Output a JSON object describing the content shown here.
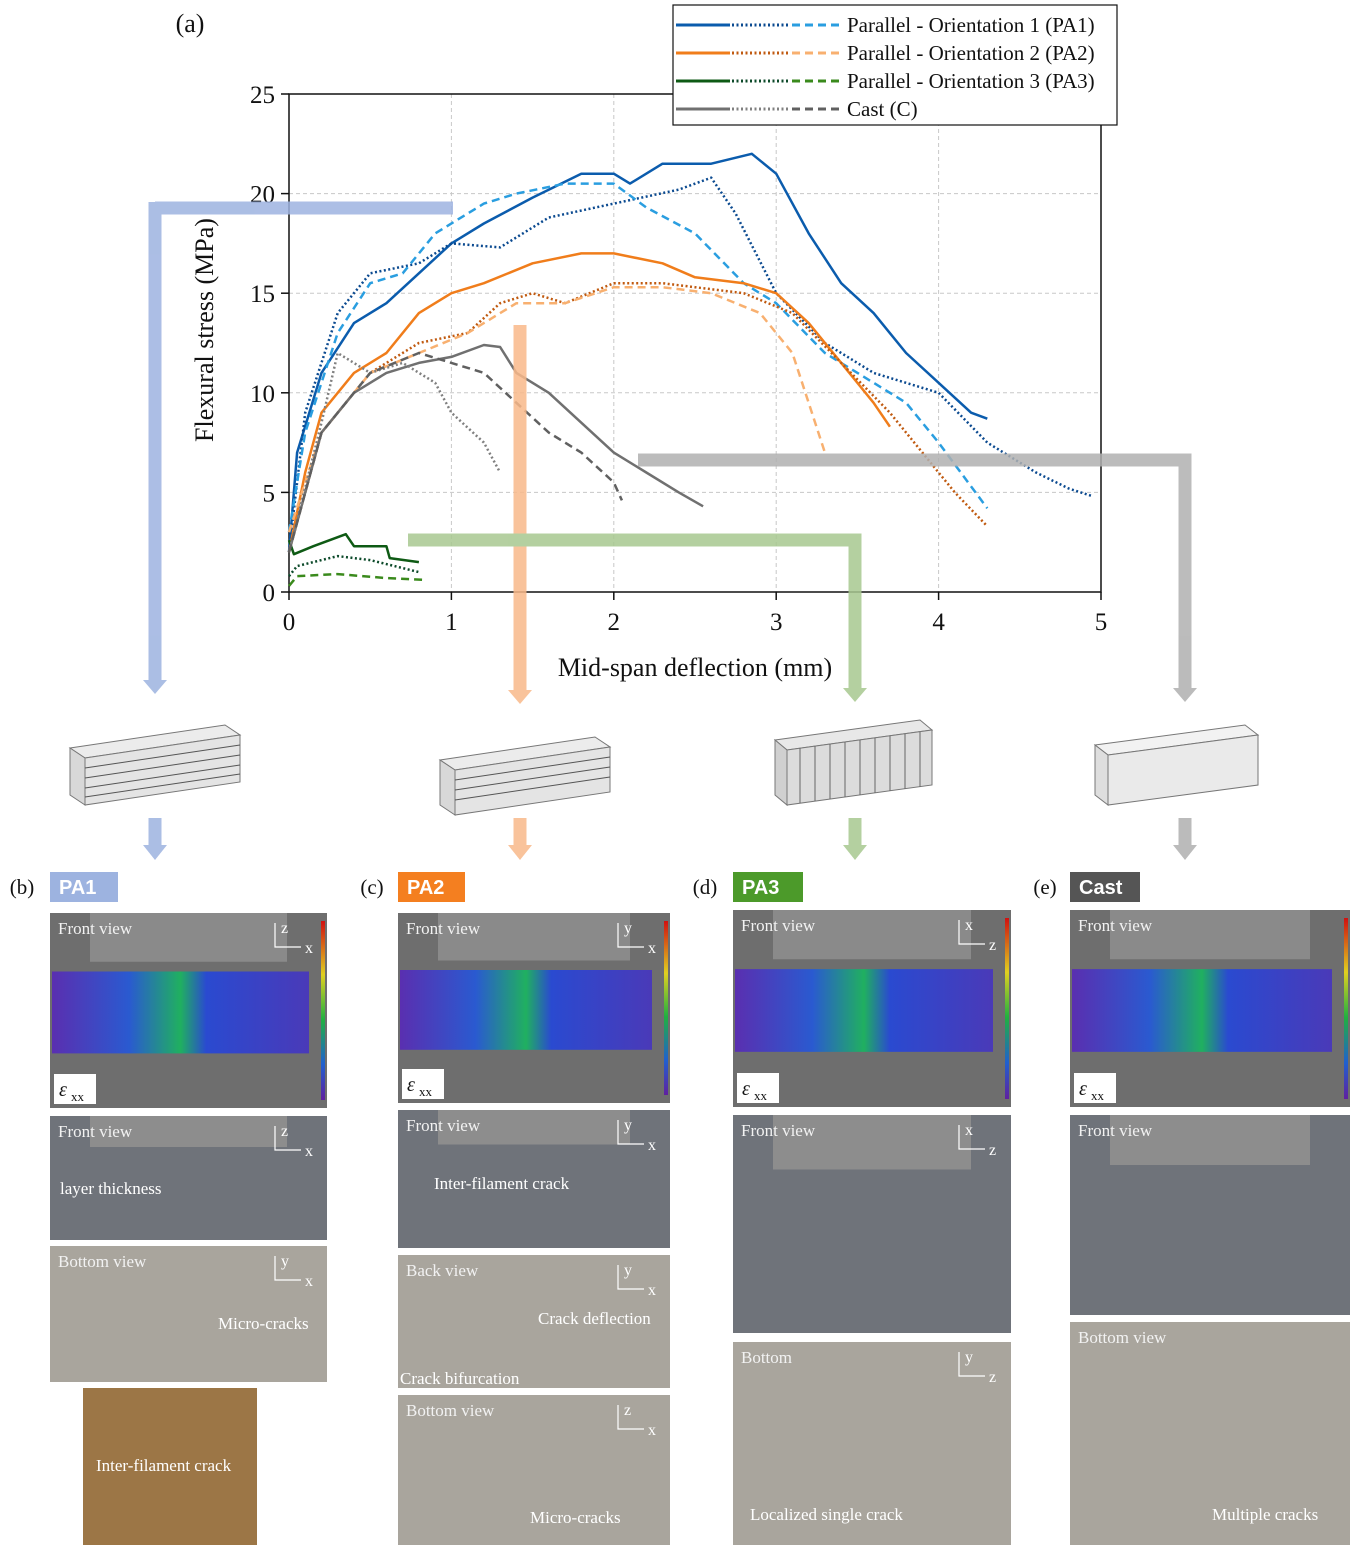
{
  "chart_data": {
    "type": "line",
    "title": "(a)",
    "x_label": "Mid-span deflection (mm)",
    "y_label": "Flexural stress (MPa)",
    "xlim": [
      0,
      5
    ],
    "xticks": [
      0,
      1,
      2,
      3,
      4,
      5
    ],
    "ylim": [
      0,
      25
    ],
    "yticks": [
      0,
      5,
      10,
      15,
      20,
      25
    ],
    "grid": true,
    "legend": "top-right",
    "series": [
      {
        "name": "Parallel - Orientation 1 (PA1)",
        "lines": [
          {
            "dash": "solid",
            "color": "#0b5cad",
            "x": [
              0,
              0.05,
              0.2,
              0.4,
              0.6,
              0.8,
              1,
              1.2,
              1.5,
              1.8,
              2,
              2.1,
              2.3,
              2.6,
              2.85,
              3,
              3.2,
              3.4,
              3.6,
              3.8,
              4,
              4.2,
              4.3
            ],
            "values": [
              2,
              7,
              11,
              13.5,
              14.5,
              16,
              17.5,
              18.5,
              19.8,
              21,
              21,
              20.5,
              21.5,
              21.5,
              22,
              21,
              18,
              15.5,
              14,
              12,
              10.5,
              9,
              8.7
            ]
          },
          {
            "dash": "dotted",
            "color": "#0b4a90",
            "x": [
              0,
              0.1,
              0.3,
              0.5,
              0.8,
              1,
              1.3,
              1.6,
              2,
              2.4,
              2.6,
              2.75,
              3,
              3.3,
              3.6,
              4,
              4.3,
              4.6,
              4.8,
              4.95
            ],
            "values": [
              2,
              9,
              14,
              16,
              16.5,
              17.5,
              17.3,
              18.8,
              19.5,
              20.2,
              20.8,
              19,
              15,
              12.5,
              11,
              10,
              7.5,
              6,
              5.2,
              4.8
            ]
          },
          {
            "dash": "dashed",
            "color": "#2a9ee0",
            "x": [
              0,
              0.1,
              0.3,
              0.5,
              0.7,
              0.9,
              1.2,
              1.4,
              1.7,
              2,
              2.2,
              2.5,
              2.8,
              3,
              3.3,
              3.6,
              3.8,
              4,
              4.3
            ],
            "values": [
              3,
              8,
              13,
              15.5,
              16,
              18,
              19.5,
              20,
              20.5,
              20.5,
              19.3,
              18,
              15.5,
              14.5,
              12,
              10.5,
              9.5,
              7.5,
              4.2
            ]
          }
        ]
      },
      {
        "name": "Parallel - Orientation 2 (PA2)",
        "lines": [
          {
            "dash": "solid",
            "color": "#f07d1b",
            "x": [
              0,
              0.1,
              0.2,
              0.4,
              0.6,
              0.8,
              1,
              1.2,
              1.5,
              1.8,
              2,
              2.3,
              2.5,
              2.8,
              3,
              3.2,
              3.4,
              3.6,
              3.7
            ],
            "values": [
              2,
              6,
              9,
              11,
              12,
              14,
              15,
              15.5,
              16.5,
              17,
              17,
              16.5,
              15.8,
              15.5,
              15,
              13.5,
              11.5,
              9.5,
              8.3
            ]
          },
          {
            "dash": "dotted",
            "color": "#c05a10",
            "x": [
              0,
              0.2,
              0.5,
              0.8,
              1.1,
              1.3,
              1.5,
              1.7,
              2,
              2.3,
              2.5,
              2.8,
              3.1,
              3.4,
              3.7,
              3.9,
              4.1,
              4.3
            ],
            "values": [
              2,
              8,
              11,
              12.5,
              13,
              14.5,
              15,
              14.5,
              15.5,
              15.5,
              15.3,
              15,
              14,
              11.5,
              9,
              7,
              5,
              3.3
            ]
          },
          {
            "dash": "dashed",
            "color": "#f8b070",
            "x": [
              0,
              0.2,
              0.5,
              0.8,
              1.1,
              1.4,
              1.7,
              2,
              2.3,
              2.6,
              2.9,
              3.1,
              3.3
            ],
            "values": [
              3,
              8,
              11,
              12,
              13,
              14.5,
              14.5,
              15.3,
              15.3,
              15,
              14,
              12,
              7
            ]
          }
        ]
      },
      {
        "name": "Parallel - Orientation 3 (PA3)",
        "lines": [
          {
            "dash": "solid",
            "color": "#0e5a14",
            "x": [
              0,
              0.03,
              0.15,
              0.35,
              0.4,
              0.6,
              0.62,
              0.8
            ],
            "values": [
              2.6,
              1.9,
              2.3,
              2.9,
              2.3,
              2.3,
              1.7,
              1.5
            ]
          },
          {
            "dash": "dotted",
            "color": "#0c4a2a",
            "x": [
              0,
              0.05,
              0.3,
              0.5,
              0.7,
              0.8
            ],
            "values": [
              0.8,
              1.3,
              1.8,
              1.6,
              1.2,
              1
            ]
          },
          {
            "dash": "dashed",
            "color": "#3a8a1c",
            "x": [
              0,
              0.05,
              0.3,
              0.6,
              0.85
            ],
            "values": [
              0.3,
              0.8,
              0.9,
              0.7,
              0.6
            ]
          }
        ]
      },
      {
        "name": "Cast (C)",
        "lines": [
          {
            "dash": "solid",
            "color": "#707070",
            "x": [
              0,
              0.2,
              0.4,
              0.6,
              0.8,
              1,
              1.2,
              1.3,
              1.4,
              1.6,
              1.8,
              2,
              2.2,
              2.4,
              2.55
            ],
            "values": [
              2,
              8,
              10,
              11,
              11.5,
              11.8,
              12.4,
              12.3,
              11,
              10,
              8.5,
              7,
              6,
              5,
              4.3
            ]
          },
          {
            "dash": "dotted",
            "color": "#808080",
            "x": [
              0,
              0.2,
              0.3,
              0.5,
              0.7,
              0.9,
              1,
              1.2,
              1.3
            ],
            "values": [
              2,
              8.5,
              12,
              11,
              11.5,
              10.5,
              9,
              7.5,
              6
            ]
          },
          {
            "dash": "dashed",
            "color": "#606060",
            "x": [
              0,
              0.2,
              0.5,
              0.8,
              1,
              1.2,
              1.4,
              1.6,
              1.8,
              2,
              2.05
            ],
            "values": [
              2,
              8,
              11,
              12,
              11.5,
              11,
              9.5,
              8,
              7,
              5.5,
              4.6
            ]
          }
        ]
      }
    ]
  },
  "panels": [
    {
      "label": "(b)",
      "tag": "PA1",
      "color": "#9db3e0",
      "photos": [
        {
          "caption": "Front view",
          "axes": [
            "z",
            "x"
          ],
          "strain": "ε",
          "strain_sub": "xx"
        },
        {
          "caption": "Front view",
          "axes": [
            "z",
            "x"
          ],
          "notes": [
            "layer thickness"
          ]
        },
        {
          "caption": "Bottom view",
          "axes": [
            "y",
            "x"
          ],
          "notes": [
            "Micro-cracks"
          ]
        },
        {
          "notes": [
            "Inter-filament crack"
          ]
        }
      ]
    },
    {
      "label": "(c)",
      "tag": "PA2",
      "color": "#f47f20",
      "photos": [
        {
          "caption": "Front view",
          "axes": [
            "y",
            "x"
          ],
          "strain": "ε",
          "strain_sub": "xx"
        },
        {
          "caption": "Front view",
          "axes": [
            "y",
            "x"
          ],
          "notes": [
            "Inter-filament crack"
          ]
        },
        {
          "caption": "Back view",
          "axes": [
            "y",
            "x"
          ],
          "notes": [
            "Crack deflection",
            "Crack bifurcation"
          ]
        },
        {
          "caption": "Bottom view",
          "axes": [
            "z",
            "x"
          ],
          "notes": [
            "Micro-cracks"
          ]
        }
      ]
    },
    {
      "label": "(d)",
      "tag": "PA3",
      "color": "#4c9a2a",
      "photos": [
        {
          "caption": "Front view",
          "axes": [
            "x",
            "z"
          ],
          "strain": "ε",
          "strain_sub": "xx"
        },
        {
          "caption": "Front view",
          "axes": [
            "x",
            "z"
          ]
        },
        {
          "caption": "Bottom",
          "axes": [
            "y",
            "z"
          ],
          "notes": [
            "Localized single crack"
          ]
        }
      ]
    },
    {
      "label": "(e)",
      "tag": "Cast",
      "color": "#555555",
      "photos": [
        {
          "caption": "Front view",
          "strain": "ε",
          "strain_sub": "xx"
        },
        {
          "caption": "Front view"
        },
        {
          "caption": "Bottom view",
          "notes": [
            "Multiple cracks"
          ]
        }
      ]
    }
  ]
}
